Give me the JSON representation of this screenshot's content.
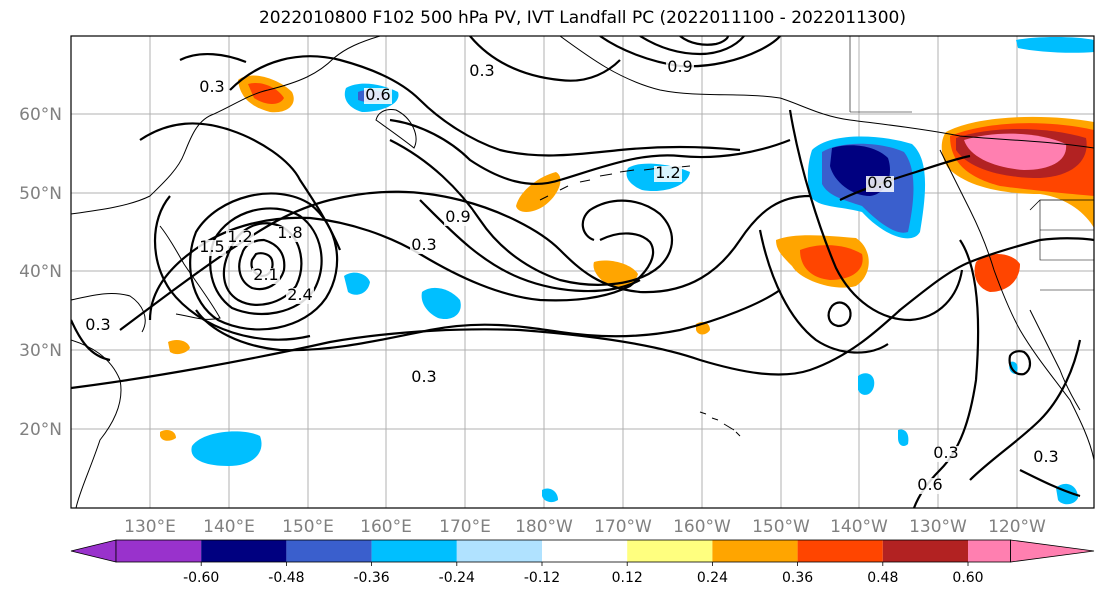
{
  "title": "2022010800 F102 500 hPa PV, IVT Landfall PC (2022011100 - 2022011300)",
  "latitude_labels": [
    "60°N",
    "50°N",
    "40°N",
    "30°N",
    "20°N"
  ],
  "longitude_labels": [
    "130°E",
    "140°E",
    "150°E",
    "160°E",
    "170°E",
    "180°W",
    "170°W",
    "160°W",
    "150°W",
    "140°W",
    "130°W",
    "120°W"
  ],
  "contour_labels": [
    "0.3",
    "0.6",
    "0.9",
    "1.2",
    "1.5",
    "1.8",
    "2.1",
    "2.4",
    "0.3",
    "0.9",
    "0.3",
    "0.3",
    "0.6",
    "0.3",
    "1.2",
    "0.3",
    "0.6",
    "0.3"
  ],
  "colorbar": {
    "colors": [
      "#9932cc",
      "#000080",
      "#3a5fcd",
      "#00bfff",
      "#b0e2ff",
      "#ffffff",
      "#ffff7f",
      "#ffa500",
      "#ff4500",
      "#b22222",
      "#ff7fb0"
    ],
    "tick_labels": [
      "-0.60",
      "-0.48",
      "-0.36",
      "-0.24",
      "-0.12",
      "0.12",
      "0.24",
      "0.36",
      "0.48",
      "0.60"
    ]
  },
  "colors": {
    "grid": "#b0b0b0",
    "contour": "#000000",
    "tick_text": "#808080"
  }
}
